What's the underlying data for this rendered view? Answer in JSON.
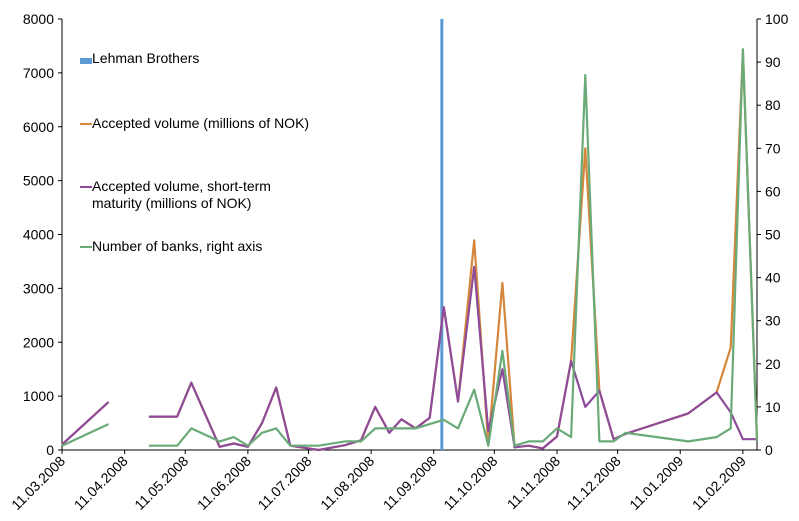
{
  "chart_data": {
    "type": "line",
    "x": [
      "11.03.2008",
      "03.04.2008",
      "11.04.2008",
      "23.04.2008",
      "07.05.2008",
      "14.05.2008",
      "28.05.2008",
      "04.06.2008",
      "11.06.2008",
      "18.06.2008",
      "25.06.2008",
      "02.07.2008",
      "16.07.2008",
      "29.07.2008",
      "06.08.2008",
      "13.08.2008",
      "20.08.2008",
      "26.08.2008",
      "02.09.2008",
      "09.09.2008",
      "16.09.2008",
      "23.09.2008",
      "01.10.2008",
      "08.10.2008",
      "15.10.2008",
      "21.10.2008",
      "28.10.2008",
      "04.11.2008",
      "11.11.2008",
      "18.11.2008",
      "25.11.2008",
      "02.12.2008",
      "09.12.2008",
      "15.12.2008",
      "15.01.2009",
      "29.01.2009",
      "05.02.2009",
      "11.02.2009",
      "18.02.2009"
    ],
    "series": [
      {
        "name": "Accepted volume (millions of NOK)",
        "color": "#d4873a",
        "values": [
          100,
          890,
          null,
          620,
          620,
          1250,
          60,
          120,
          60,
          500,
          1160,
          80,
          0,
          90,
          180,
          800,
          320,
          570,
          400,
          600,
          2650,
          900,
          3890,
          100,
          3100,
          50,
          80,
          30,
          250,
          1650,
          5600,
          1100,
          200,
          300,
          680,
          1070,
          1900,
          7400,
          200
        ]
      },
      {
        "name": "Accepted volume, short-term maturity (millions of NOK)",
        "color": "#8e4b9a",
        "values": [
          100,
          890,
          null,
          620,
          620,
          1250,
          60,
          120,
          60,
          500,
          1160,
          80,
          0,
          90,
          180,
          800,
          320,
          570,
          400,
          600,
          2650,
          900,
          3400,
          350,
          1500,
          50,
          80,
          30,
          250,
          1650,
          800,
          1100,
          200,
          300,
          680,
          1070,
          700,
          200,
          200
        ]
      },
      {
        "name": "Number of banks, right axis",
        "color": "#6aaa78",
        "axis": "y2",
        "values": [
          1,
          6,
          null,
          1,
          1,
          5,
          2,
          3,
          1,
          4,
          5,
          1,
          1,
          2,
          2,
          5,
          5,
          5,
          5,
          6,
          7,
          5,
          14,
          1,
          23,
          1,
          2,
          2,
          5,
          3,
          87,
          2,
          2,
          4,
          2,
          3,
          5,
          93,
          2
        ]
      }
    ],
    "events": [
      {
        "name": "Lehman Brothers",
        "x": "15.09.2008",
        "color": "#5b9bd5"
      }
    ],
    "xlim": [
      "11.03.2008",
      "18.02.2009"
    ],
    "xticks": [
      "11.03.2008",
      "11.04.2008",
      "11.05.2008",
      "11.06.2008",
      "11.07.2008",
      "11.08.2008",
      "11.09.2008",
      "11.10.2008",
      "11.11.2008",
      "11.12.2008",
      "11.01.2009",
      "11.02.2009"
    ],
    "ylim": [
      0,
      8000
    ],
    "yticks": [
      0,
      1000,
      2000,
      3000,
      4000,
      5000,
      6000,
      7000,
      8000
    ],
    "y2lim": [
      0,
      100
    ],
    "y2ticks": [
      0,
      10,
      20,
      30,
      40,
      50,
      60,
      70,
      80,
      90,
      100
    ],
    "grid": false
  }
}
